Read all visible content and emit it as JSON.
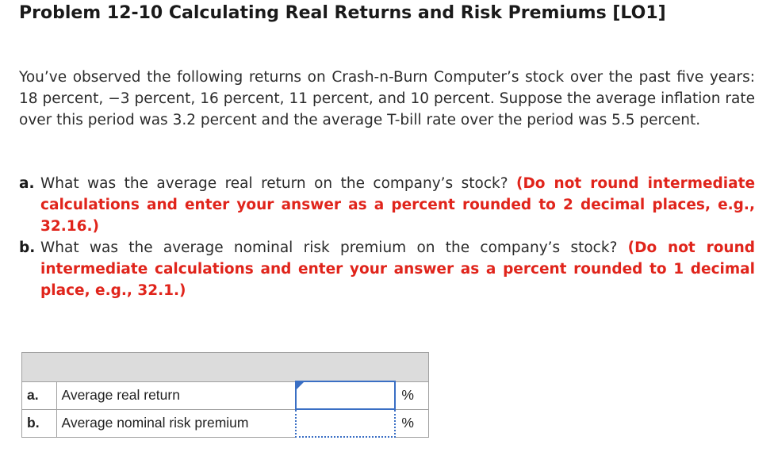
{
  "title": "Problem 12-10 Calculating Real Returns and Risk Premiums [LO1]",
  "intro": "You’ve observed the following returns on Crash-n-Burn Computer’s stock over the past five years: 18 percent, −3 percent, 16 percent, 11 percent, and 10 percent. Suppose the average inflation rate over this period was 3.2 percent and the average T-bill rate over the period was 5.5 percent.",
  "questions": [
    {
      "letter": "a.",
      "text": "What was the average real return on the company’s stock?",
      "instruction": "(Do not round intermediate calculations and enter your answer as a percent rounded to 2 decimal places, e.g., 32.16.)"
    },
    {
      "letter": "b.",
      "text": "What was the average nominal risk premium on the company’s stock?",
      "instruction": "(Do not round intermediate calculations and enter your answer as a percent rounded to 1 decimal place, e.g., 32.1.)"
    }
  ],
  "answer_table": {
    "rows": [
      {
        "letter": "a.",
        "label": "Average real return",
        "value": "",
        "unit": "%"
      },
      {
        "letter": "b.",
        "label": "Average nominal risk premium",
        "value": "",
        "unit": "%"
      }
    ]
  },
  "colors": {
    "instruction": "#e0241b",
    "input_border": "#3a6fc4",
    "table_header": "#dcdcdc"
  }
}
